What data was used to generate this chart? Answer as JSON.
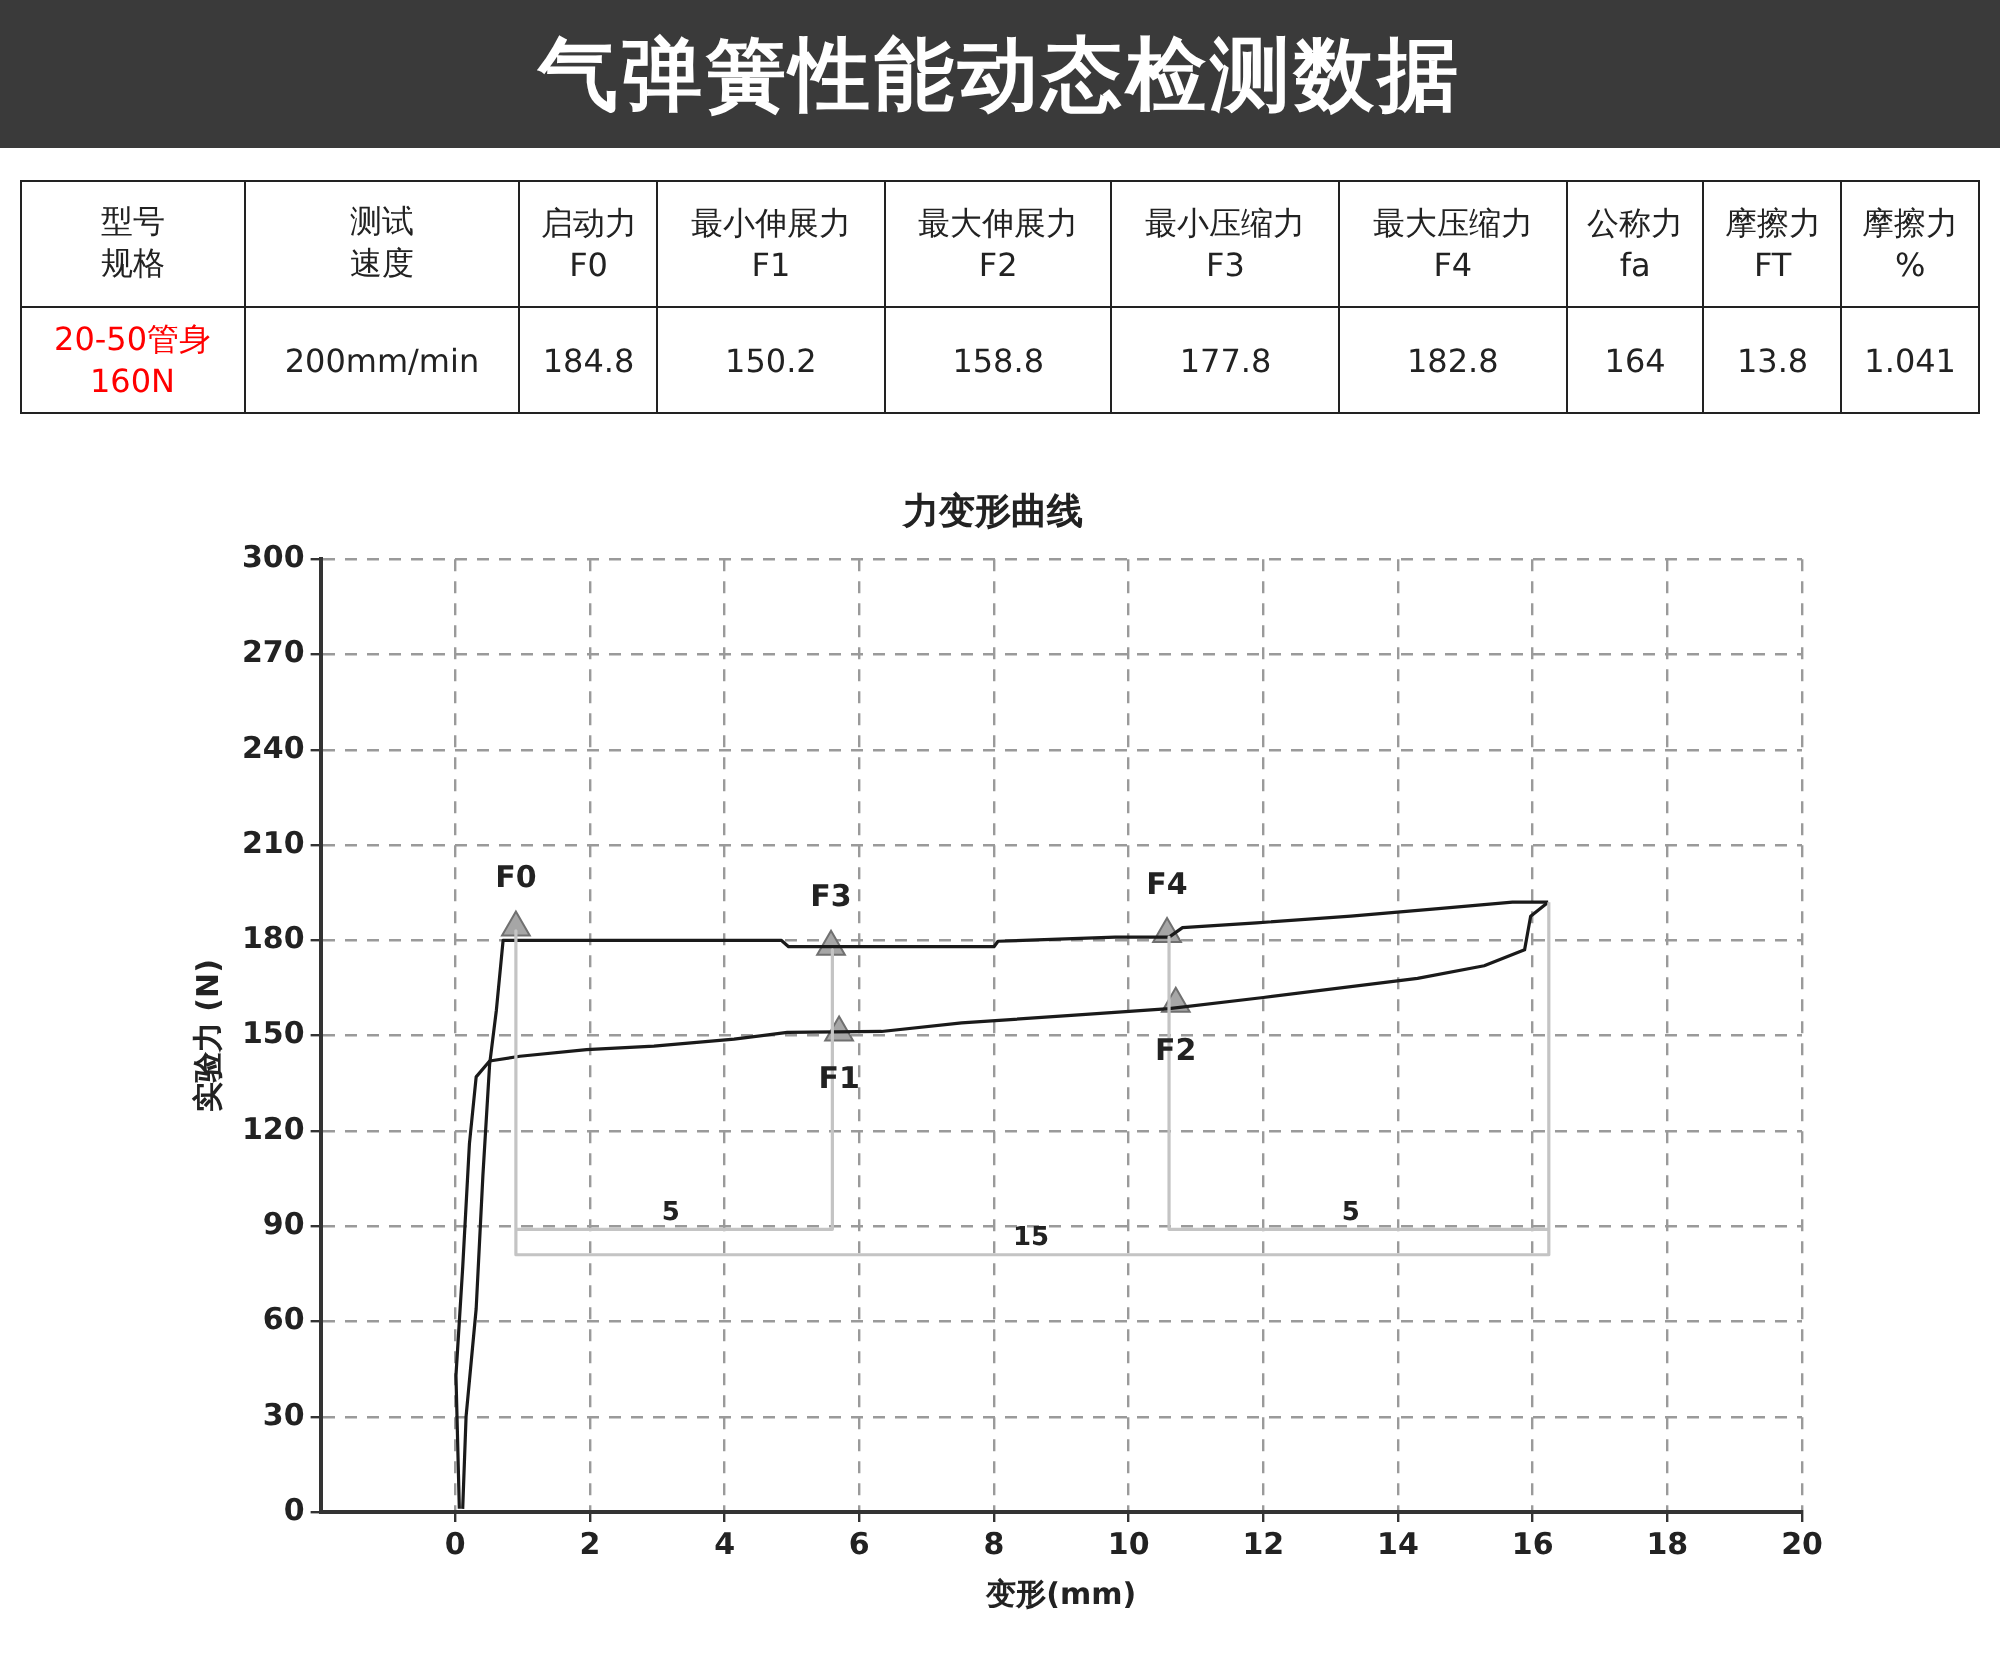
{
  "chart_data": [
    {
      "type": "other",
      "title": "气弹簧性能动态检测数据",
      "categories": [
        "型号规格",
        "测试速度",
        "启动力\nF0",
        "最小伸展力\nF1",
        "最大伸展力\nF2",
        "最小压缩力\nF3",
        "最大压缩力\nF4",
        "公称力\nfa",
        "摩擦力\nFT",
        "摩擦力\n%"
      ],
      "value_labels": [
        "20-50管身\n160N",
        "200mm/min",
        "184.8",
        "150.2",
        "158.8",
        "177.8",
        "182.8",
        "164",
        "13.8",
        "1.041"
      ],
      "colors": [
        "#ff0000",
        "#222222",
        "#222222",
        "#222222",
        "#222222",
        "#222222",
        "#222222",
        "#222222",
        "#222222",
        "#222222"
      ]
    },
    {
      "type": "line",
      "title": "力变形曲线",
      "xlabel": "变形(mm)",
      "ylabel": "实验力 (N)",
      "xlim": [
        -2,
        20
      ],
      "xticks": [
        0,
        2,
        4,
        6,
        8,
        10,
        12,
        14,
        16,
        18,
        20
      ],
      "ylim": [
        0,
        300
      ],
      "yticks": [
        0,
        30,
        60,
        90,
        120,
        150,
        180,
        210,
        240,
        270,
        300
      ],
      "grid": true,
      "legend": false,
      "series": [
        {
          "type": "line",
          "color": "#c4c4c4",
          "x": [
            0.9,
            0.9,
            16.24,
            16.24
          ],
          "values": [
            183,
            81,
            81,
            192
          ]
        },
        {
          "type": "line",
          "color": "#c4c4c4",
          "x": [
            5.6,
            5.6,
            0.9
          ],
          "values": [
            177,
            89,
            89
          ]
        },
        {
          "type": "line",
          "color": "#c4c4c4",
          "x": [
            10.6,
            10.6,
            16.24
          ],
          "values": [
            181,
            89,
            89
          ]
        },
        {
          "type": "line",
          "color": "#1a1a1a",
          "x": [
            0.11,
            0.16,
            0.31,
            0.41,
            0.51,
            0.61,
            0.71,
            1.5,
            3,
            4.84,
            4.95,
            6.33,
            8.0,
            8.06,
            9.8,
            10.6,
            10.8,
            11.9,
            13.3,
            14.6,
            15.7,
            16.23
          ],
          "values": [
            1,
            30,
            64,
            106,
            141,
            158,
            180,
            180,
            180,
            180,
            178,
            178,
            178,
            179.7,
            181,
            181,
            184,
            185.5,
            187.6,
            190,
            192,
            192
          ]
        },
        {
          "type": "line",
          "color": "#1a1a1a",
          "x": [
            0.06,
            0.01,
            0.11,
            0.21,
            0.31,
            0.51,
            0.96,
            1.95,
            2.95,
            4.14,
            4.93,
            6.33,
            7.52,
            9.31,
            10.6,
            12,
            14.29,
            15.28,
            15.88,
            15.97,
            16.23
          ],
          "values": [
            1,
            43,
            77,
            116,
            137,
            142,
            143.5,
            145.6,
            146.7,
            148.9,
            151,
            151.3,
            154,
            156.6,
            158.5,
            162,
            168,
            172,
            177,
            187.6,
            192
          ]
        },
        {
          "type": "scatter",
          "color": "#a6a6a6",
          "marker": "triangle",
          "x": [
            0.9,
            5.58,
            10.57,
            5.7,
            10.7
          ],
          "values": [
            184,
            178,
            182,
            151,
            160
          ]
        }
      ],
      "annotations": [
        {
          "text": "F0",
          "x": 0.9,
          "y": 184
        },
        {
          "text": "F3",
          "x": 5.58,
          "y": 178
        },
        {
          "text": "F4",
          "x": 10.57,
          "y": 182
        },
        {
          "text": "F1",
          "x": 5.7,
          "y": 151
        },
        {
          "text": "F2",
          "x": 10.7,
          "y": 160
        },
        {
          "text": "5",
          "x": 3.2,
          "y": 89
        },
        {
          "text": "5",
          "x": 13.3,
          "y": 89
        },
        {
          "text": "15",
          "x": 8.55,
          "y": 81
        }
      ]
    }
  ]
}
